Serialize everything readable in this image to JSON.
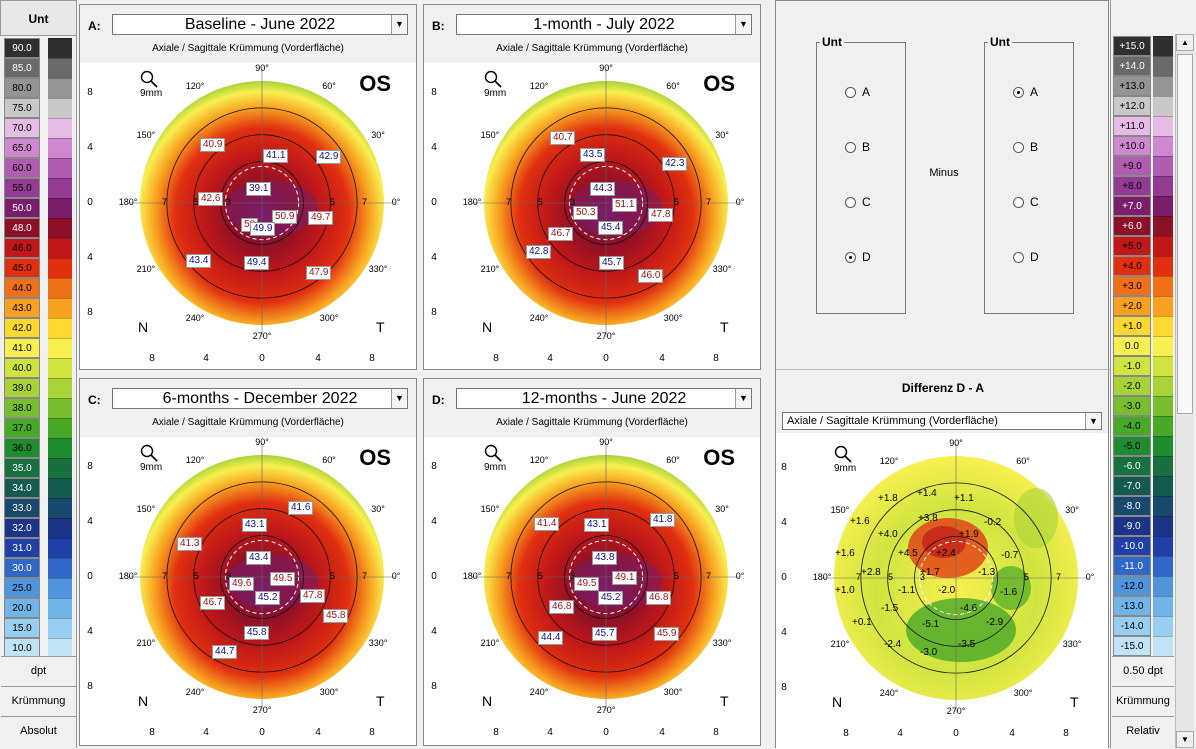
{
  "left_scale": {
    "title": "Unt",
    "rows": [
      {
        "label": "90.0",
        "color": "#303030",
        "text": "#fff"
      },
      {
        "label": "85.0",
        "color": "#6a6a6a",
        "text": "#fff"
      },
      {
        "label": "80.0",
        "color": "#949494",
        "text": "#000"
      },
      {
        "label": "75.0",
        "color": "#c8c8c8",
        "text": "#000"
      },
      {
        "label": "70.0",
        "color": "#e6bce6",
        "text": "#000"
      },
      {
        "label": "65.0",
        "color": "#cf88cf",
        "text": "#000"
      },
      {
        "label": "60.0",
        "color": "#b05cb0",
        "text": "#000"
      },
      {
        "label": "55.0",
        "color": "#943c94",
        "text": "#000"
      },
      {
        "label": "50.0",
        "color": "#7a1e6a",
        "text": "#fff"
      },
      {
        "label": "48.0",
        "color": "#8c1028",
        "text": "#fff"
      },
      {
        "label": "46.0",
        "color": "#c01818",
        "text": "#000"
      },
      {
        "label": "45.0",
        "color": "#e03010",
        "text": "#000"
      },
      {
        "label": "44.0",
        "color": "#f07018",
        "text": "#000"
      },
      {
        "label": "43.0",
        "color": "#f8a020",
        "text": "#000"
      },
      {
        "label": "42.0",
        "color": "#fcd830",
        "text": "#000"
      },
      {
        "label": "41.0",
        "color": "#f8f050",
        "text": "#000"
      },
      {
        "label": "40.0",
        "color": "#d0e440",
        "text": "#000"
      },
      {
        "label": "39.0",
        "color": "#a8d238",
        "text": "#000"
      },
      {
        "label": "38.0",
        "color": "#78be30",
        "text": "#000"
      },
      {
        "label": "37.0",
        "color": "#48a828",
        "text": "#000"
      },
      {
        "label": "36.0",
        "color": "#208c30",
        "text": "#000"
      },
      {
        "label": "35.0",
        "color": "#187040",
        "text": "#fff"
      },
      {
        "label": "34.0",
        "color": "#145a50",
        "text": "#fff"
      },
      {
        "label": "33.0",
        "color": "#18486c",
        "text": "#fff"
      },
      {
        "label": "32.0",
        "color": "#1c3488",
        "text": "#fff"
      },
      {
        "label": "31.0",
        "color": "#2040a8",
        "text": "#fff"
      },
      {
        "label": "30.0",
        "color": "#3068c8",
        "text": "#fff"
      },
      {
        "label": "25.0",
        "color": "#5094dc",
        "text": "#000"
      },
      {
        "label": "20.0",
        "color": "#70b4e8",
        "text": "#000"
      },
      {
        "label": "15.0",
        "color": "#98cef0",
        "text": "#000"
      },
      {
        "label": "10.0",
        "color": "#c0e4f6",
        "text": "#000"
      }
    ],
    "buttons": [
      "dpt",
      "Krümmung",
      "Absolut"
    ]
  },
  "panels": [
    {
      "letter": "A:",
      "title": "Baseline - June 2022",
      "subtitle": "Axiale / Sagittale Krümmung (Vorderfläche)",
      "eye": "OS",
      "values": [
        {
          "t": "41.1",
          "c": "blue",
          "x": 183,
          "y": 86
        },
        {
          "t": "42.9",
          "c": "blue",
          "x": 236,
          "y": 87
        },
        {
          "t": "40.9",
          "c": "red",
          "x": 120,
          "y": 75
        },
        {
          "t": "39.1",
          "c": "blue",
          "x": 166,
          "y": 119
        },
        {
          "t": "42.6",
          "c": "red",
          "x": 118,
          "y": 129
        },
        {
          "t": "50.9",
          "c": "red",
          "x": 192,
          "y": 147
        },
        {
          "t": "49.7",
          "c": "red",
          "x": 228,
          "y": 148
        },
        {
          "t": "50",
          "c": "red",
          "x": 161,
          "y": 155
        },
        {
          "t": "49.9",
          "c": "blue",
          "x": 170,
          "y": 159
        },
        {
          "t": "43.4",
          "c": "blue",
          "x": 106,
          "y": 191
        },
        {
          "t": "49.4",
          "c": "blue",
          "x": 164,
          "y": 193
        },
        {
          "t": "47.9",
          "c": "red",
          "x": 226,
          "y": 203
        }
      ]
    },
    {
      "letter": "B:",
      "title": "1-month - July 2022",
      "subtitle": "Axiale / Sagittale Krümmung (Vorderfläche)",
      "eye": "OS",
      "values": [
        {
          "t": "40.7",
          "c": "red",
          "x": 126,
          "y": 68
        },
        {
          "t": "43.5",
          "c": "blue",
          "x": 156,
          "y": 85
        },
        {
          "t": "42.3",
          "c": "blue",
          "x": 238,
          "y": 94
        },
        {
          "t": "44.3",
          "c": "blue",
          "x": 166,
          "y": 119
        },
        {
          "t": "50.3",
          "c": "red",
          "x": 149,
          "y": 143
        },
        {
          "t": "51.1",
          "c": "red",
          "x": 188,
          "y": 135
        },
        {
          "t": "47.8",
          "c": "red",
          "x": 224,
          "y": 145
        },
        {
          "t": "45.4",
          "c": "blue",
          "x": 174,
          "y": 158
        },
        {
          "t": "46.7",
          "c": "red",
          "x": 124,
          "y": 164
        },
        {
          "t": "42.8",
          "c": "blue",
          "x": 102,
          "y": 182
        },
        {
          "t": "45.7",
          "c": "blue",
          "x": 175,
          "y": 193
        },
        {
          "t": "46.0",
          "c": "red",
          "x": 214,
          "y": 206
        }
      ]
    },
    {
      "letter": "C:",
      "title": "6-months - December 2022",
      "subtitle": "Axiale / Sagittale Krümmung (Vorderfläche)",
      "eye": "OS",
      "values": [
        {
          "t": "41.6",
          "c": "blue",
          "x": 208,
          "y": 64
        },
        {
          "t": "43.1",
          "c": "blue",
          "x": 162,
          "y": 81
        },
        {
          "t": "41.3",
          "c": "red",
          "x": 97,
          "y": 100
        },
        {
          "t": "43.4",
          "c": "blue",
          "x": 166,
          "y": 114
        },
        {
          "t": "49.6",
          "c": "red",
          "x": 149,
          "y": 140
        },
        {
          "t": "49.5",
          "c": "red",
          "x": 190,
          "y": 135
        },
        {
          "t": "47.8",
          "c": "red",
          "x": 220,
          "y": 152
        },
        {
          "t": "46.7",
          "c": "red",
          "x": 120,
          "y": 159
        },
        {
          "t": "45.2",
          "c": "blue",
          "x": 175,
          "y": 154
        },
        {
          "t": "45.8",
          "c": "red",
          "x": 243,
          "y": 172
        },
        {
          "t": "45.8",
          "c": "blue",
          "x": 164,
          "y": 189
        },
        {
          "t": "44.7",
          "c": "blue",
          "x": 132,
          "y": 208
        }
      ]
    },
    {
      "letter": "D:",
      "title": "12-months - June 2022",
      "subtitle": "Axiale / Sagittale Krümmung (Vorderfläche)",
      "eye": "OS",
      "values": [
        {
          "t": "41.4",
          "c": "red",
          "x": 110,
          "y": 80
        },
        {
          "t": "43.1",
          "c": "blue",
          "x": 160,
          "y": 81
        },
        {
          "t": "41.8",
          "c": "blue",
          "x": 226,
          "y": 76
        },
        {
          "t": "43.8",
          "c": "blue",
          "x": 168,
          "y": 114
        },
        {
          "t": "49.5",
          "c": "red",
          "x": 150,
          "y": 140
        },
        {
          "t": "49.1",
          "c": "red",
          "x": 188,
          "y": 134
        },
        {
          "t": "46.8",
          "c": "red",
          "x": 222,
          "y": 154
        },
        {
          "t": "46.8",
          "c": "red",
          "x": 125,
          "y": 163
        },
        {
          "t": "45.2",
          "c": "blue",
          "x": 174,
          "y": 154
        },
        {
          "t": "45.9",
          "c": "red",
          "x": 230,
          "y": 190
        },
        {
          "t": "44.4",
          "c": "blue",
          "x": 114,
          "y": 194
        },
        {
          "t": "45.7",
          "c": "blue",
          "x": 168,
          "y": 190
        }
      ]
    }
  ],
  "axis": {
    "x_ticks": [
      "8",
      "4",
      "0",
      "4",
      "8"
    ],
    "y_ticks": [
      "8",
      "4",
      "0",
      "4",
      "8"
    ],
    "angles": [
      "90°",
      "60°",
      "30°",
      "0°",
      "330°",
      "300°",
      "270°",
      "240°",
      "210°",
      "180°",
      "150°",
      "120°"
    ],
    "ring_labels": [
      "7",
      "5",
      "3",
      "5",
      "7"
    ],
    "nasal": "N",
    "temporal": "T",
    "mag_text": "9mm",
    "center_mark": "51.2"
  },
  "compare": {
    "group_left": {
      "title": "Unt",
      "options": [
        "A",
        "B",
        "C",
        "D"
      ],
      "selected": "D"
    },
    "group_right": {
      "title": "Unt",
      "options": [
        "A",
        "B",
        "C",
        "D"
      ],
      "selected": "A"
    },
    "minus_label": "Minus",
    "diff_title": "Differenz D - A",
    "diff_dropdown": "Axiale / Sagittale Krümmung (Vorderfläche)",
    "diff_values": [
      {
        "t": "+1.8",
        "x": 102,
        "y": 90
      },
      {
        "t": "+1.4",
        "x": 141,
        "y": 85
      },
      {
        "t": "+1.1",
        "x": 178,
        "y": 90
      },
      {
        "t": "+3.8",
        "x": 142,
        "y": 110
      },
      {
        "t": "-0.2",
        "x": 208,
        "y": 114
      },
      {
        "t": "+1.6",
        "x": 74,
        "y": 113
      },
      {
        "t": "+4.0",
        "x": 102,
        "y": 126
      },
      {
        "t": "+1.9",
        "x": 183,
        "y": 126
      },
      {
        "t": "+1.6",
        "x": 59,
        "y": 145
      },
      {
        "t": "+4.5",
        "x": 122,
        "y": 145
      },
      {
        "t": "+2.4",
        "x": 160,
        "y": 145
      },
      {
        "t": "-0.7",
        "x": 225,
        "y": 147
      },
      {
        "t": "+2.8",
        "x": 85,
        "y": 164
      },
      {
        "t": "+1.7",
        "x": 144,
        "y": 164
      },
      {
        "t": "-1.3",
        "x": 202,
        "y": 164
      },
      {
        "t": "+1.0",
        "x": 59,
        "y": 182
      },
      {
        "t": "-1.1",
        "x": 122,
        "y": 182
      },
      {
        "t": "-2.0",
        "x": 162,
        "y": 182
      },
      {
        "t": "-1.6",
        "x": 224,
        "y": 184
      },
      {
        "t": "-1.5",
        "x": 105,
        "y": 200
      },
      {
        "t": "-4.6",
        "x": 184,
        "y": 200
      },
      {
        "t": "+0.1",
        "x": 76,
        "y": 214
      },
      {
        "t": "-5.1",
        "x": 146,
        "y": 216
      },
      {
        "t": "-2.9",
        "x": 210,
        "y": 214
      },
      {
        "t": "-2.4",
        "x": 108,
        "y": 236
      },
      {
        "t": "-3.5",
        "x": 182,
        "y": 236
      },
      {
        "t": "-3.0",
        "x": 144,
        "y": 244
      }
    ]
  },
  "right_scale": {
    "rows": [
      {
        "label": "+15.0",
        "color": "#303030",
        "text": "#fff"
      },
      {
        "label": "+14.0",
        "color": "#6a6a6a",
        "text": "#fff"
      },
      {
        "label": "+13.0",
        "color": "#949494",
        "text": "#000"
      },
      {
        "label": "+12.0",
        "color": "#c8c8c8",
        "text": "#000"
      },
      {
        "label": "+11.0",
        "color": "#e6bce6",
        "text": "#000"
      },
      {
        "label": "+10.0",
        "color": "#cf88cf",
        "text": "#000"
      },
      {
        "label": "+9.0",
        "color": "#b05cb0",
        "text": "#000"
      },
      {
        "label": "+8.0",
        "color": "#943c94",
        "text": "#000"
      },
      {
        "label": "+7.0",
        "color": "#7a1e6a",
        "text": "#fff"
      },
      {
        "label": "+6.0",
        "color": "#8c1028",
        "text": "#fff"
      },
      {
        "label": "+5.0",
        "color": "#c01818",
        "text": "#000"
      },
      {
        "label": "+4.0",
        "color": "#e03010",
        "text": "#000"
      },
      {
        "label": "+3.0",
        "color": "#f07018",
        "text": "#000"
      },
      {
        "label": "+2.0",
        "color": "#f8a020",
        "text": "#000"
      },
      {
        "label": "+1.0",
        "color": "#fcd830",
        "text": "#000"
      },
      {
        "label": "0.0",
        "color": "#f8f050",
        "text": "#000"
      },
      {
        "label": "-1.0",
        "color": "#d0e440",
        "text": "#000"
      },
      {
        "label": "-2.0",
        "color": "#a8d238",
        "text": "#000"
      },
      {
        "label": "-3.0",
        "color": "#78be30",
        "text": "#000"
      },
      {
        "label": "-4.0",
        "color": "#48a828",
        "text": "#000"
      },
      {
        "label": "-5.0",
        "color": "#208c30",
        "text": "#000"
      },
      {
        "label": "-6.0",
        "color": "#187040",
        "text": "#fff"
      },
      {
        "label": "-7.0",
        "color": "#145a50",
        "text": "#fff"
      },
      {
        "label": "-8.0",
        "color": "#18486c",
        "text": "#fff"
      },
      {
        "label": "-9.0",
        "color": "#1c3488",
        "text": "#fff"
      },
      {
        "label": "-10.0",
        "color": "#2040a8",
        "text": "#fff"
      },
      {
        "label": "-11.0",
        "color": "#3068c8",
        "text": "#fff"
      },
      {
        "label": "-12.0",
        "color": "#5094dc",
        "text": "#000"
      },
      {
        "label": "-13.0",
        "color": "#70b4e8",
        "text": "#000"
      },
      {
        "label": "-14.0",
        "color": "#98cef0",
        "text": "#000"
      },
      {
        "label": "-15.0",
        "color": "#c0e4f6",
        "text": "#000"
      }
    ],
    "buttons": [
      "0.50 dpt",
      "Krümmung",
      "Relativ"
    ]
  }
}
